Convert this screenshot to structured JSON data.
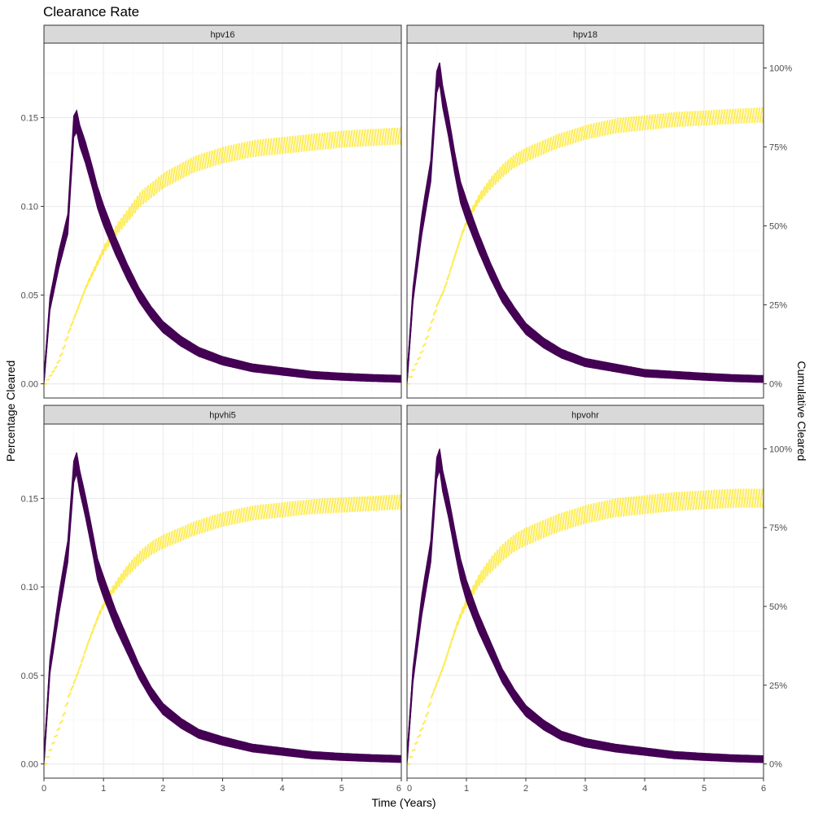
{
  "chart_data": {
    "type": "line",
    "title": "Clearance Rate",
    "xlabel": "Time (Years)",
    "ylabel": "Percentage Cleared",
    "y2label": "Cumulative Cleared",
    "xlim": [
      0,
      6
    ],
    "ylim": [
      -0.008,
      0.192
    ],
    "y2lim": [
      0,
      1
    ],
    "x_ticks": [
      0,
      1,
      2,
      3,
      4,
      5,
      6
    ],
    "x_tick_labels": [
      "0",
      "1",
      "2",
      "3",
      "4",
      "5",
      "6"
    ],
    "y_ticks": [
      0,
      0.05,
      0.1,
      0.15
    ],
    "y_tick_labels": [
      "0.00",
      "0.05",
      "0.10",
      "0.15"
    ],
    "y2_ticks": [
      0,
      0.25,
      0.5,
      0.75,
      1.0
    ],
    "y2_tick_labels": [
      "0%",
      "25%",
      "50%",
      "75%",
      "100%"
    ],
    "grid": true,
    "legend": "none",
    "colors": {
      "rate": "#440154",
      "cumulative": "#FDE725",
      "strip_fill": "#D9D9D9",
      "grid_major": "#EBEBEB",
      "grid_minor": "#F5F5F5",
      "panel_border": "#333333"
    },
    "panels": [
      {
        "label": "hpv16",
        "rate": {
          "x": [
            0,
            0.1,
            0.25,
            0.4,
            0.5,
            0.55,
            0.6,
            0.7,
            0.8,
            0.9,
            1.0,
            1.2,
            1.4,
            1.6,
            1.8,
            2.0,
            2.3,
            2.6,
            3.0,
            3.5,
            4.0,
            4.5,
            5.0,
            5.5,
            6.0
          ],
          "y": [
            0.002,
            0.045,
            0.07,
            0.09,
            0.145,
            0.148,
            0.14,
            0.13,
            0.118,
            0.105,
            0.095,
            0.078,
            0.063,
            0.05,
            0.04,
            0.032,
            0.024,
            0.018,
            0.013,
            0.009,
            0.007,
            0.005,
            0.004,
            0.0033,
            0.0028
          ],
          "band": 0.006
        },
        "cumulative": {
          "x": [
            0,
            0.1,
            0.2,
            0.3,
            0.4,
            0.5,
            0.6,
            0.7,
            0.8,
            0.9,
            1.0,
            1.2,
            1.4,
            1.6,
            1.8,
            2.0,
            2.5,
            3.0,
            3.5,
            4.0,
            4.5,
            5.0,
            5.5,
            6.0
          ],
          "y": [
            0,
            0.03,
            0.06,
            0.11,
            0.17,
            0.22,
            0.27,
            0.32,
            0.36,
            0.4,
            0.44,
            0.5,
            0.55,
            0.6,
            0.63,
            0.66,
            0.71,
            0.74,
            0.76,
            0.77,
            0.78,
            0.79,
            0.795,
            0.8
          ],
          "band": 0.04
        }
      },
      {
        "label": "hpv18",
        "rate": {
          "x": [
            0,
            0.1,
            0.25,
            0.4,
            0.5,
            0.55,
            0.6,
            0.7,
            0.8,
            0.9,
            1.0,
            1.2,
            1.4,
            1.6,
            1.8,
            2.0,
            2.3,
            2.6,
            3.0,
            3.5,
            4.0,
            4.5,
            5.0,
            5.5,
            6.0
          ],
          "y": [
            0.002,
            0.05,
            0.09,
            0.12,
            0.17,
            0.175,
            0.162,
            0.145,
            0.125,
            0.108,
            0.098,
            0.08,
            0.064,
            0.05,
            0.04,
            0.031,
            0.023,
            0.017,
            0.012,
            0.009,
            0.006,
            0.005,
            0.004,
            0.0032,
            0.0027
          ],
          "band": 0.006
        },
        "cumulative": {
          "x": [
            0,
            0.1,
            0.2,
            0.3,
            0.4,
            0.5,
            0.6,
            0.7,
            0.8,
            0.9,
            1.0,
            1.2,
            1.4,
            1.6,
            1.8,
            2.0,
            2.5,
            3.0,
            3.5,
            4.0,
            4.5,
            5.0,
            5.5,
            6.0
          ],
          "y": [
            0,
            0.05,
            0.09,
            0.14,
            0.2,
            0.26,
            0.3,
            0.36,
            0.42,
            0.48,
            0.53,
            0.6,
            0.65,
            0.69,
            0.72,
            0.74,
            0.78,
            0.81,
            0.83,
            0.84,
            0.85,
            0.855,
            0.86,
            0.865
          ],
          "band": 0.035
        }
      },
      {
        "label": "hpvhi5",
        "rate": {
          "x": [
            0,
            0.1,
            0.25,
            0.4,
            0.5,
            0.55,
            0.6,
            0.7,
            0.8,
            0.9,
            1.0,
            1.2,
            1.4,
            1.6,
            1.8,
            2.0,
            2.3,
            2.6,
            3.0,
            3.5,
            4.0,
            4.5,
            5.0,
            5.5,
            6.0
          ],
          "y": [
            0.002,
            0.055,
            0.09,
            0.12,
            0.165,
            0.17,
            0.16,
            0.145,
            0.128,
            0.11,
            0.1,
            0.082,
            0.067,
            0.052,
            0.04,
            0.031,
            0.023,
            0.017,
            0.013,
            0.009,
            0.007,
            0.005,
            0.004,
            0.0033,
            0.0028
          ],
          "band": 0.006
        },
        "cumulative": {
          "x": [
            0,
            0.1,
            0.2,
            0.3,
            0.4,
            0.5,
            0.6,
            0.7,
            0.8,
            0.9,
            1.0,
            1.2,
            1.4,
            1.6,
            1.8,
            2.0,
            2.5,
            3.0,
            3.5,
            4.0,
            4.5,
            5.0,
            5.5,
            6.0
          ],
          "y": [
            0,
            0.05,
            0.1,
            0.15,
            0.22,
            0.27,
            0.32,
            0.38,
            0.43,
            0.48,
            0.52,
            0.58,
            0.63,
            0.67,
            0.7,
            0.72,
            0.76,
            0.79,
            0.81,
            0.82,
            0.83,
            0.835,
            0.84,
            0.845
          ],
          "band": 0.035
        }
      },
      {
        "label": "hpvohr",
        "rate": {
          "x": [
            0,
            0.1,
            0.25,
            0.4,
            0.5,
            0.55,
            0.6,
            0.7,
            0.8,
            0.9,
            1.0,
            1.2,
            1.4,
            1.6,
            1.8,
            2.0,
            2.3,
            2.6,
            3.0,
            3.5,
            4.0,
            4.5,
            5.0,
            5.5,
            6.0
          ],
          "y": [
            0.002,
            0.05,
            0.09,
            0.12,
            0.167,
            0.172,
            0.16,
            0.145,
            0.127,
            0.11,
            0.098,
            0.08,
            0.065,
            0.05,
            0.039,
            0.03,
            0.022,
            0.016,
            0.012,
            0.009,
            0.007,
            0.005,
            0.004,
            0.0032,
            0.0027
          ],
          "band": 0.006
        },
        "cumulative": {
          "x": [
            0,
            0.1,
            0.2,
            0.3,
            0.4,
            0.5,
            0.6,
            0.7,
            0.8,
            0.9,
            1.0,
            1.2,
            1.4,
            1.6,
            1.8,
            2.0,
            2.5,
            3.0,
            3.5,
            4.0,
            4.5,
            5.0,
            5.5,
            6.0
          ],
          "y": [
            0,
            0.05,
            0.1,
            0.15,
            0.22,
            0.27,
            0.32,
            0.38,
            0.44,
            0.49,
            0.53,
            0.6,
            0.65,
            0.69,
            0.72,
            0.74,
            0.78,
            0.81,
            0.83,
            0.84,
            0.85,
            0.855,
            0.86,
            0.86
          ],
          "band": 0.045
        }
      }
    ]
  }
}
